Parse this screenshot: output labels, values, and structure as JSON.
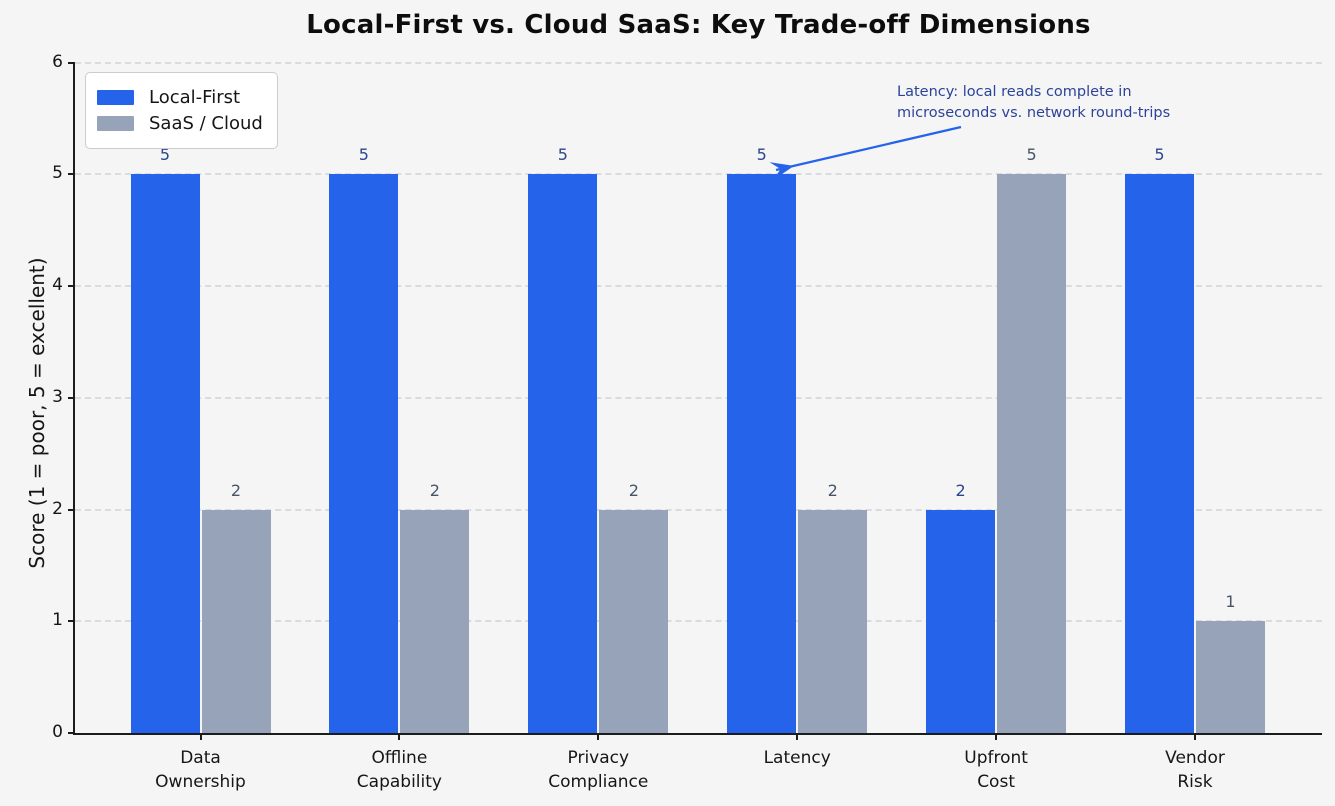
{
  "title": "Local-First vs. Cloud SaaS: Key Trade-off Dimensions",
  "chart_data": {
    "type": "bar",
    "title": "Local-First vs. Cloud SaaS: Key Trade-off Dimensions",
    "categories": [
      "Data\nOwnership",
      "Offline\nCapability",
      "Privacy\nCompliance",
      "Latency",
      "Upfront\nCost",
      "Vendor\nRisk"
    ],
    "series": [
      {
        "name": "Local-First",
        "color": "#2563eb",
        "label_color": "#2a4690",
        "values": [
          5,
          5,
          5,
          5,
          2,
          5
        ]
      },
      {
        "name": "SaaS / Cloud",
        "color": "#96a3b8",
        "label_color": "#475569",
        "values": [
          2,
          2,
          2,
          2,
          5,
          1
        ]
      }
    ],
    "xlabel": "",
    "ylabel": "Score (1 = poor, 5 = excellent)",
    "ylim": [
      0,
      6
    ],
    "yticks": [
      0,
      1,
      2,
      3,
      4,
      5,
      6
    ],
    "grid": "horizontal-dashed",
    "legend_position": "upper-left",
    "bar_value_labels": true,
    "annotation": {
      "text": "Latency: local reads complete in\nmicroseconds vs. network round-trips",
      "text_color": "#2b4499",
      "arrow_color": "#2563eb",
      "target_category": "Latency",
      "target_series": "Local-First"
    }
  }
}
